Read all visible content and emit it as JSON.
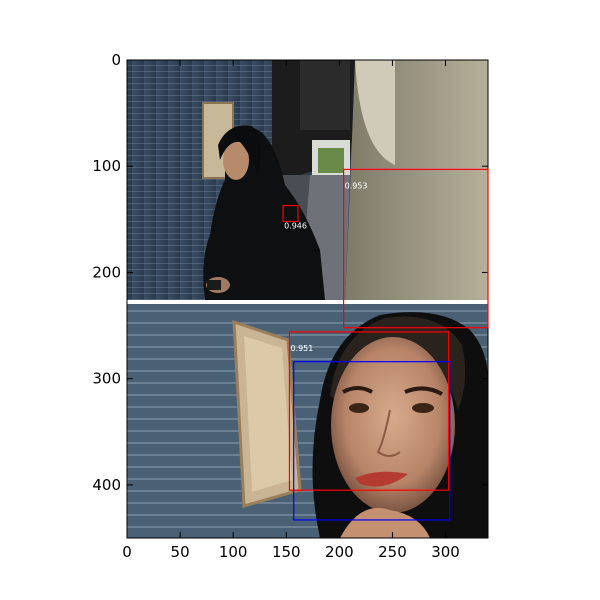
{
  "figure": {
    "x_ticks": [
      "0",
      "50",
      "100",
      "150",
      "200",
      "250",
      "300"
    ],
    "y_ticks": [
      "0",
      "100",
      "200",
      "300",
      "400"
    ]
  },
  "photo": {
    "description": "Composite of two photographs: top shows a woman in a black headscarf standing in a corridor beside a blue tiled wall; bottom shows a close-up of her face.",
    "divider_color": "#ffffff"
  },
  "detections": [
    {
      "label": "0.953",
      "color": "#ff0000"
    },
    {
      "label": "0.946",
      "color": "#ff0000"
    },
    {
      "label": "0.951",
      "color": "#ff0000"
    },
    {
      "label": "",
      "color": "#0000ff"
    }
  ],
  "chart_data": {
    "type": "image",
    "xlim": [
      0,
      340
    ],
    "ylim": [
      450,
      0
    ],
    "x_ticks": [
      0,
      50,
      100,
      150,
      200,
      250,
      300
    ],
    "y_ticks": [
      0,
      100,
      200,
      300,
      400
    ],
    "boxes": [
      {
        "score": "0.953",
        "color": "red",
        "x0": 204,
        "y0": 103,
        "x1": 341,
        "y1": 252
      },
      {
        "score": "0.946",
        "color": "red",
        "x0": 147,
        "y0": 137,
        "x1": 161,
        "y1": 152
      },
      {
        "score": "0.951",
        "color": "red",
        "x0": 153,
        "y0": 256,
        "x1": 303,
        "y1": 405
      },
      {
        "score": "",
        "color": "blue",
        "x0": 157,
        "y0": 284,
        "x1": 304,
        "y1": 433
      }
    ]
  }
}
